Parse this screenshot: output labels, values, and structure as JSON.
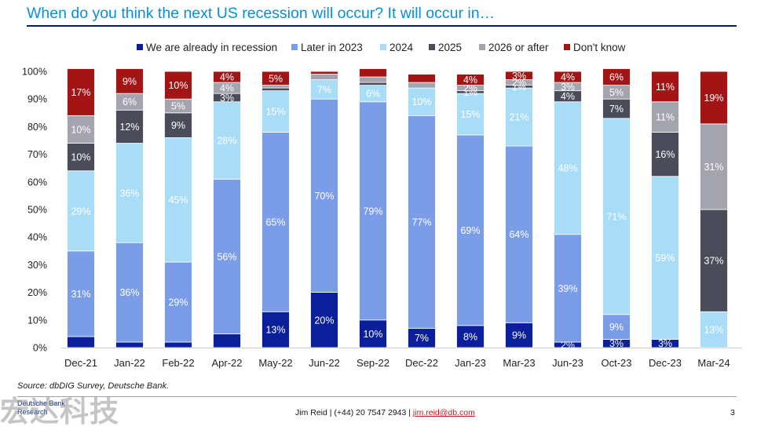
{
  "title": "When do you think the next US recession will occur? It will occur in…",
  "source": "Source: dbDIG Survey, Deutsche Bank.",
  "logo": {
    "line1": "Deutsche Bank",
    "line2": "Research"
  },
  "footer": {
    "contact_prefix": "Jim Reid | (+44) 20 7547 2943 | ",
    "email": "jim.reid@db.com",
    "page_number": "3"
  },
  "watermark": "宏达科技",
  "chart_data": {
    "type": "bar",
    "stacked": true,
    "categories": [
      "Dec-21",
      "Jan-22",
      "Feb-22",
      "Apr-22",
      "May-22",
      "Jun-22",
      "Sep-22",
      "Dec-22",
      "Jan-23",
      "Mar-23",
      "Jun-23",
      "Oct-23",
      "Dec-23",
      "Mar-24"
    ],
    "series": [
      {
        "name": "We are already in recession",
        "color": "#0a1f99",
        "values": [
          4,
          2,
          2,
          5,
          13,
          20,
          10,
          7,
          8,
          9,
          2,
          3,
          3,
          0
        ],
        "labels": [
          "",
          "",
          "",
          "",
          "13%",
          "20%",
          "10%",
          "7%",
          "8%",
          "9%",
          "2%",
          "3%",
          "3%",
          ""
        ]
      },
      {
        "name": "Later in 2023",
        "color": "#7b9de8",
        "values": [
          31,
          36,
          29,
          56,
          65,
          70,
          79,
          77,
          69,
          64,
          39,
          9,
          0,
          0
        ],
        "labels": [
          "31%",
          "36%",
          "29%",
          "56%",
          "65%",
          "70%",
          "79%",
          "77%",
          "69%",
          "64%",
          "39%",
          "9%",
          "",
          ""
        ]
      },
      {
        "name": "2024",
        "color": "#a8dcf7",
        "values": [
          29,
          36,
          45,
          28,
          15,
          7,
          6,
          10,
          15,
          21,
          48,
          71,
          59,
          13
        ],
        "labels": [
          "29%",
          "36%",
          "45%",
          "28%",
          "15%",
          "7%",
          "6%",
          "10%",
          "15%",
          "21%",
          "48%",
          "71%",
          "59%",
          "13%"
        ]
      },
      {
        "name": "2025",
        "color": "#4a4c5a",
        "values": [
          10,
          12,
          9,
          3,
          1,
          0,
          1,
          0,
          1,
          1,
          4,
          7,
          16,
          37
        ],
        "labels": [
          "10%",
          "12%",
          "9%",
          "3%",
          "",
          "",
          "",
          "",
          "1%",
          "1%",
          "4%",
          "7%",
          "16%",
          "37%"
        ]
      },
      {
        "name": "2026 or after",
        "color": "#a3a4ad",
        "values": [
          10,
          6,
          5,
          4,
          1,
          2,
          2,
          2,
          2,
          2,
          3,
          5,
          11,
          31
        ],
        "labels": [
          "10%",
          "6%",
          "5%",
          "4%",
          "",
          "",
          "",
          "",
          "2%",
          "2%",
          "3%",
          "5%",
          "11%",
          "31%"
        ]
      },
      {
        "name": "Don't know",
        "color": "#a31515",
        "values": [
          17,
          9,
          10,
          4,
          5,
          1,
          3,
          3,
          4,
          3,
          4,
          6,
          11,
          19
        ],
        "labels": [
          "17%",
          "9%",
          "10%",
          "4%",
          "5%",
          "",
          "",
          "",
          "4%",
          "3%",
          "4%",
          "6%",
          "11%",
          "19%"
        ]
      }
    ],
    "ylim": [
      0,
      100
    ],
    "yticks": [
      "0%",
      "10%",
      "20%",
      "30%",
      "40%",
      "50%",
      "60%",
      "70%",
      "80%",
      "90%",
      "100%"
    ],
    "legend_position": "top",
    "grid": false,
    "label_color": "#ffffff"
  }
}
